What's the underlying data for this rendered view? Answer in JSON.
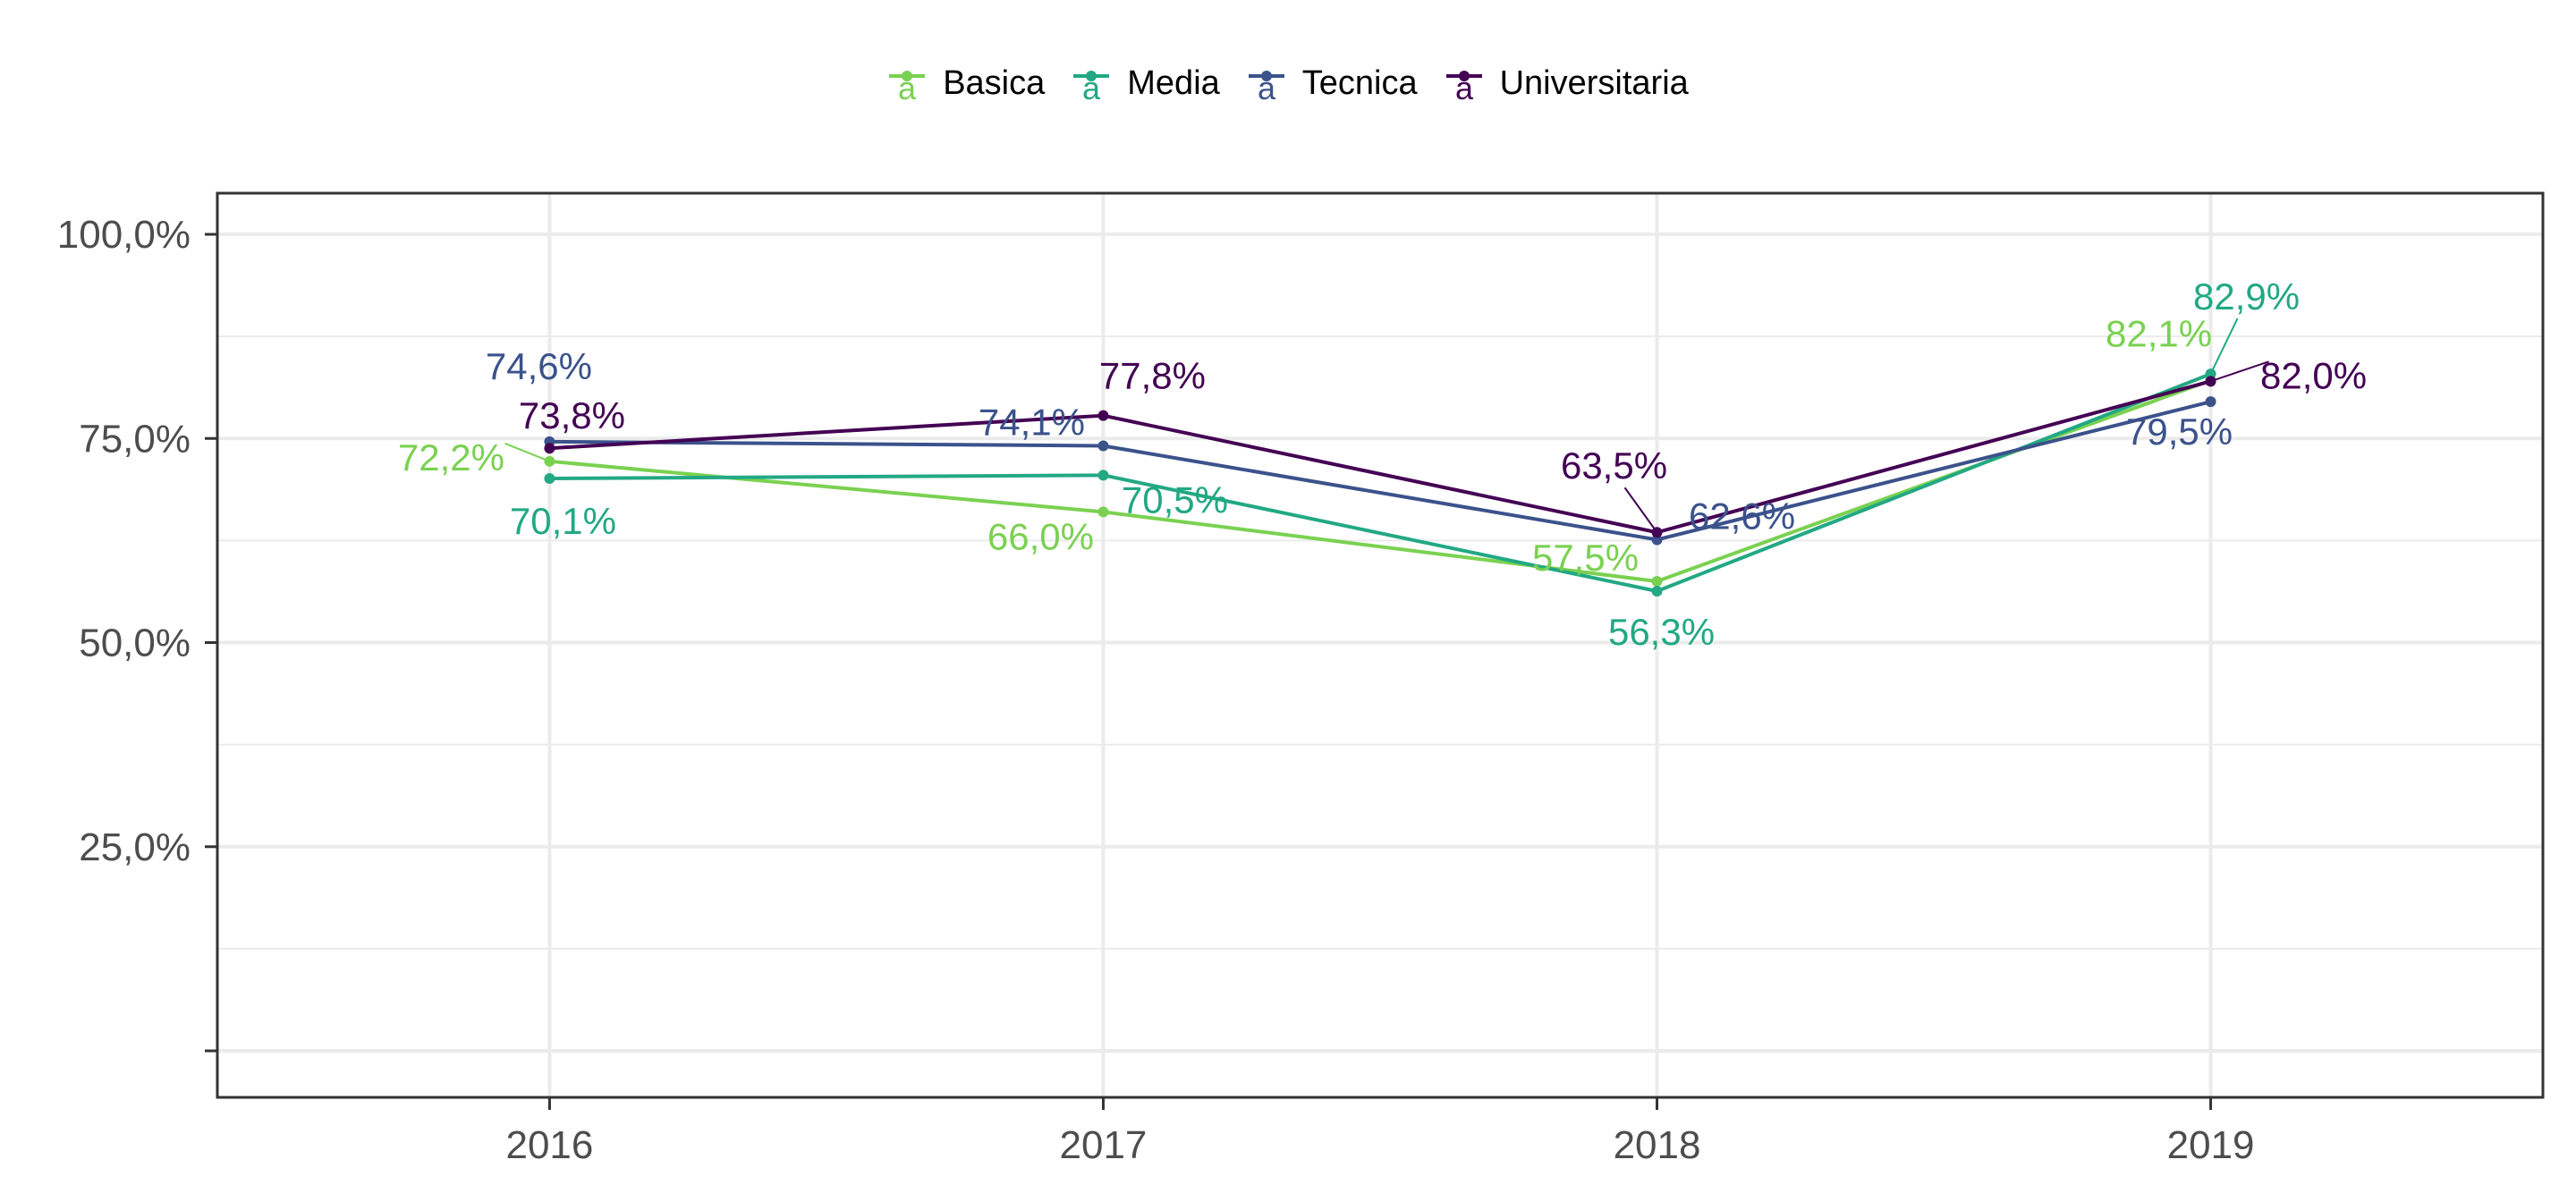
{
  "chart_data": {
    "type": "line",
    "categories": [
      "2016",
      "2017",
      "2018",
      "2019"
    ],
    "y_ticks": [
      0,
      25,
      50,
      75,
      100
    ],
    "y_tick_labels": [
      "",
      "25,0%",
      "50,0%",
      "75,0%",
      "100,0%"
    ],
    "ylim": [
      0,
      105
    ],
    "grid": true,
    "legend_position": "top",
    "series": [
      {
        "name": "Basica",
        "color": "#7AD151",
        "values": [
          72.2,
          66.0,
          57.5,
          82.1
        ],
        "labels": [
          "72,2%",
          "66,0%",
          "57,5%",
          "82,1%"
        ]
      },
      {
        "name": "Media",
        "color": "#22A884",
        "values": [
          70.1,
          70.5,
          56.3,
          82.9
        ],
        "labels": [
          "70,1%",
          "70,5%",
          "56,3%",
          "82,9%"
        ]
      },
      {
        "name": "Tecnica",
        "color": "#3B528B",
        "values": [
          74.6,
          74.1,
          62.6,
          79.5
        ],
        "labels": [
          "74,6%",
          "74,1%",
          "62,6%",
          "79,5%"
        ]
      },
      {
        "name": "Universitaria",
        "color": "#440154",
        "values": [
          73.8,
          77.8,
          63.5,
          82.0
        ],
        "labels": [
          "73,8%",
          "77,8%",
          "63,5%",
          "82,0%"
        ]
      }
    ]
  }
}
